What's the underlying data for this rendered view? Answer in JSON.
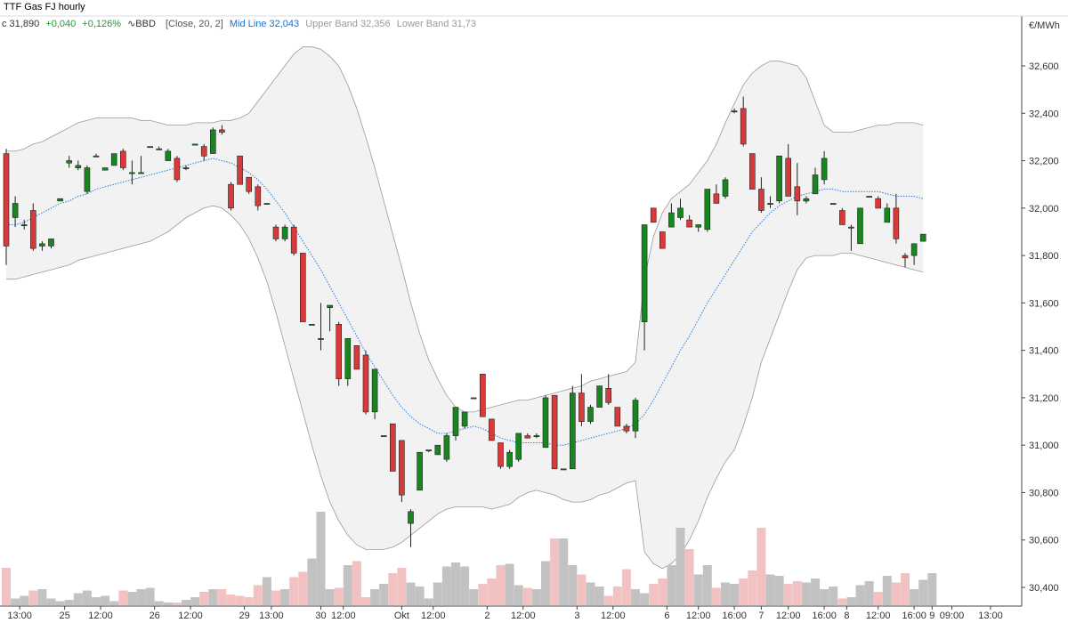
{
  "chart_data": {
    "type": "candlestick",
    "title": "TTF Gas FJ hourly",
    "unit": "€/MWh",
    "legend": {
      "last": "c 31,890",
      "change": "+0,040",
      "change_pct": "+0,126%",
      "indicator": "BBD",
      "indicator_params": "[Close, 20, 2]",
      "mid_line": "Mid Line 32,043",
      "upper_band": "Upper Band 32,356",
      "lower_band": "Lower Band 31,73"
    },
    "ylim": [
      30.3,
      32.8
    ],
    "y_ticks": [
      "32,600",
      "32,400",
      "32,200",
      "32,000",
      "31,800",
      "31,600",
      "31,400",
      "31,200",
      "31,000",
      "30,800",
      "30,600",
      "30,400"
    ],
    "y_tick_values": [
      32.6,
      32.4,
      32.2,
      32.0,
      31.8,
      31.6,
      31.4,
      31.2,
      31.0,
      30.8,
      30.6,
      30.4
    ],
    "x_ticks": [
      {
        "label": "13:00",
        "i": 1.5
      },
      {
        "label": "25",
        "i": 6.5
      },
      {
        "label": "12:00",
        "i": 10.5
      },
      {
        "label": "26",
        "i": 16.5
      },
      {
        "label": "12:00",
        "i": 20.5
      },
      {
        "label": "29",
        "i": 26.5
      },
      {
        "label": "13:00",
        "i": 29.5
      },
      {
        "label": "30",
        "i": 35
      },
      {
        "label": "12:00",
        "i": 37.5
      },
      {
        "label": "Okt",
        "i": 44
      },
      {
        "label": "12:00",
        "i": 47.5
      },
      {
        "label": "2",
        "i": 53.5
      },
      {
        "label": "12:00",
        "i": 57.5
      },
      {
        "label": "3",
        "i": 63.5
      },
      {
        "label": "12:00",
        "i": 67.5
      },
      {
        "label": "6",
        "i": 73.5
      },
      {
        "label": "12:00",
        "i": 77
      },
      {
        "label": "16:00",
        "i": 81
      },
      {
        "label": "7",
        "i": 84
      },
      {
        "label": "12:00",
        "i": 87
      },
      {
        "label": "16:00",
        "i": 91
      },
      {
        "label": "8",
        "i": 93.5
      },
      {
        "label": "12:00",
        "i": 97
      },
      {
        "label": "16:00",
        "i": 101
      },
      {
        "label": "9",
        "i": 103
      },
      {
        "label": "09:00",
        "i": 105.2
      },
      {
        "label": "13:00",
        "i": 109.5
      }
    ],
    "candles": [
      [
        32.23,
        32.25,
        31.76,
        31.84
      ],
      [
        31.96,
        32.05,
        31.92,
        32.02
      ],
      [
        31.93,
        31.95,
        31.91,
        31.93
      ],
      [
        31.99,
        32.02,
        31.82,
        31.83
      ],
      [
        31.84,
        31.86,
        31.82,
        31.85
      ],
      [
        31.84,
        31.87,
        31.83,
        31.87
      ],
      [
        32.03,
        32.04,
        32.03,
        32.04
      ],
      [
        32.19,
        32.22,
        32.17,
        32.2
      ],
      [
        32.17,
        32.2,
        32.16,
        32.18
      ],
      [
        32.07,
        32.18,
        32.06,
        32.17
      ],
      [
        32.22,
        32.23,
        32.22,
        32.22
      ],
      [
        32.16,
        32.17,
        32.16,
        32.17
      ],
      [
        32.18,
        32.23,
        32.18,
        32.23
      ],
      [
        32.24,
        32.25,
        32.16,
        32.17
      ],
      [
        32.15,
        32.2,
        32.1,
        32.15
      ],
      [
        32.15,
        32.22,
        32.15,
        32.15
      ],
      [
        32.26,
        32.26,
        32.26,
        32.26
      ],
      [
        32.25,
        32.26,
        32.25,
        32.25
      ],
      [
        32.2,
        32.25,
        32.2,
        32.24
      ],
      [
        32.21,
        32.22,
        32.11,
        32.12
      ],
      [
        32.17,
        32.18,
        32.16,
        32.17
      ],
      [
        32.27,
        32.27,
        32.27,
        32.27
      ],
      [
        32.26,
        32.27,
        32.2,
        32.22
      ],
      [
        32.23,
        32.34,
        32.23,
        32.33
      ],
      [
        32.33,
        32.35,
        32.31,
        32.32
      ],
      [
        32.1,
        32.11,
        31.99,
        32.0
      ],
      [
        32.22,
        32.22,
        32.1,
        32.1
      ],
      [
        32.13,
        32.13,
        32.06,
        32.07
      ],
      [
        32.09,
        32.1,
        31.99,
        32.01
      ],
      [
        32.02,
        32.02,
        32.02,
        32.02
      ],
      [
        31.92,
        31.93,
        31.86,
        31.87
      ],
      [
        31.87,
        31.93,
        31.86,
        31.92
      ],
      [
        31.92,
        31.93,
        31.8,
        31.81
      ],
      [
        31.81,
        31.81,
        31.52,
        31.52
      ],
      [
        31.51,
        31.51,
        31.51,
        31.51
      ],
      [
        31.45,
        31.6,
        31.4,
        31.45
      ],
      [
        31.58,
        31.58,
        31.48,
        31.59
      ],
      [
        31.51,
        31.52,
        31.25,
        31.28
      ],
      [
        31.28,
        31.45,
        31.25,
        31.45
      ],
      [
        31.42,
        31.42,
        31.32,
        31.32
      ],
      [
        31.38,
        31.4,
        31.13,
        31.14
      ],
      [
        31.14,
        31.32,
        31.11,
        31.32
      ],
      [
        31.04,
        31.04,
        31.04,
        31.04
      ],
      [
        31.09,
        31.09,
        30.89,
        30.89
      ],
      [
        31.02,
        31.02,
        30.76,
        30.79
      ],
      [
        30.67,
        30.73,
        30.57,
        30.72
      ],
      [
        30.81,
        30.97,
        30.81,
        30.97
      ],
      [
        30.98,
        30.98,
        30.97,
        30.98
      ],
      [
        30.96,
        31.0,
        30.96,
        31.0
      ],
      [
        30.94,
        31.05,
        30.93,
        31.04
      ],
      [
        31.04,
        31.16,
        31.02,
        31.16
      ],
      [
        31.08,
        31.14,
        31.07,
        31.14
      ],
      [
        31.2,
        31.2,
        31.2,
        31.2
      ],
      [
        31.3,
        31.3,
        31.12,
        31.12
      ],
      [
        31.11,
        31.11,
        31.02,
        31.02
      ],
      [
        31.01,
        31.01,
        30.9,
        30.91
      ],
      [
        30.91,
        30.98,
        30.9,
        30.97
      ],
      [
        30.94,
        31.05,
        30.93,
        31.05
      ],
      [
        31.04,
        31.05,
        31.03,
        31.03
      ],
      [
        31.04,
        31.05,
        31.03,
        31.04
      ],
      [
        30.99,
        31.21,
        30.99,
        31.2
      ],
      [
        31.21,
        31.21,
        30.9,
        30.9
      ],
      [
        30.9,
        30.9,
        30.9,
        30.9
      ],
      [
        30.9,
        31.25,
        30.9,
        31.22
      ],
      [
        31.22,
        31.3,
        31.08,
        31.1
      ],
      [
        31.1,
        31.17,
        31.09,
        31.16
      ],
      [
        31.16,
        31.25,
        31.16,
        31.25
      ],
      [
        31.24,
        31.3,
        31.17,
        31.18
      ],
      [
        31.16,
        31.16,
        31.08,
        31.08
      ],
      [
        31.08,
        31.09,
        31.05,
        31.06
      ],
      [
        31.06,
        31.2,
        31.03,
        31.19
      ],
      [
        31.52,
        31.93,
        31.4,
        31.93
      ],
      [
        32.0,
        32.0,
        31.94,
        31.94
      ],
      [
        31.9,
        31.9,
        31.83,
        31.83
      ],
      [
        31.92,
        32.02,
        31.92,
        31.98
      ],
      [
        31.96,
        32.04,
        31.95,
        32.0
      ],
      [
        31.95,
        31.97,
        31.92,
        31.92
      ],
      [
        31.92,
        31.93,
        31.9,
        31.93
      ],
      [
        31.91,
        32.08,
        31.9,
        32.08
      ],
      [
        32.06,
        32.1,
        32.02,
        32.02
      ],
      [
        32.05,
        32.13,
        32.04,
        32.12
      ],
      [
        32.41,
        32.42,
        32.4,
        32.41
      ],
      [
        32.42,
        32.47,
        32.26,
        32.27
      ],
      [
        32.23,
        32.23,
        32.08,
        32.08
      ],
      [
        32.08,
        32.13,
        31.98,
        31.99
      ],
      [
        32.02,
        32.05,
        32.0,
        32.02
      ],
      [
        32.03,
        32.22,
        32.02,
        32.22
      ],
      [
        32.21,
        32.27,
        32.05,
        32.05
      ],
      [
        32.09,
        32.19,
        31.97,
        32.03
      ],
      [
        32.03,
        32.05,
        32.02,
        32.04
      ],
      [
        32.06,
        32.17,
        32.06,
        32.14
      ],
      [
        32.12,
        32.24,
        32.1,
        32.21
      ],
      [
        32.02,
        32.02,
        32.02,
        32.02
      ],
      [
        31.99,
        32.0,
        31.93,
        31.93
      ],
      [
        31.92,
        31.93,
        31.82,
        31.92
      ],
      [
        31.85,
        32.0,
        31.85,
        32.0
      ],
      [
        32.05,
        32.05,
        32.05,
        32.05
      ],
      [
        32.04,
        32.05,
        32.0,
        32.0
      ],
      [
        31.94,
        32.02,
        31.94,
        32.0
      ],
      [
        32.0,
        32.06,
        31.85,
        31.87
      ],
      [
        31.8,
        31.81,
        31.75,
        31.79
      ],
      [
        31.8,
        31.85,
        31.76,
        31.85
      ],
      [
        31.86,
        31.89,
        31.86,
        31.89
      ]
    ],
    "mid_line": [
      31.93,
      31.93,
      31.94,
      31.96,
      31.98,
      32.0,
      32.02,
      32.03,
      32.05,
      32.06,
      32.08,
      32.09,
      32.1,
      32.11,
      32.12,
      32.13,
      32.14,
      32.15,
      32.16,
      32.17,
      32.18,
      32.19,
      32.2,
      32.21,
      32.2,
      32.19,
      32.17,
      32.15,
      32.12,
      32.08,
      32.03,
      31.98,
      31.92,
      31.86,
      31.8,
      31.74,
      31.67,
      31.6,
      31.53,
      31.46,
      31.39,
      31.33,
      31.27,
      31.21,
      31.16,
      31.12,
      31.09,
      31.07,
      31.05,
      31.05,
      31.06,
      31.07,
      31.08,
      31.07,
      31.05,
      31.03,
      31.02,
      31.01,
      31.01,
      31.01,
      31.01,
      31.0,
      31.0,
      31.01,
      31.02,
      31.03,
      31.04,
      31.05,
      31.06,
      31.07,
      31.09,
      31.13,
      31.19,
      31.26,
      31.33,
      31.4,
      31.46,
      31.53,
      31.6,
      31.66,
      31.72,
      31.78,
      31.84,
      31.9,
      31.94,
      31.98,
      32.01,
      32.03,
      32.05,
      32.06,
      32.07,
      32.08,
      32.08,
      32.07,
      32.07,
      32.07,
      32.07,
      32.07,
      32.06,
      32.05,
      32.05,
      32.05,
      32.04
    ],
    "upper_band": [
      32.24,
      32.24,
      32.25,
      32.27,
      32.28,
      32.3,
      32.32,
      32.34,
      32.36,
      32.37,
      32.38,
      32.38,
      32.38,
      32.38,
      32.38,
      32.37,
      32.37,
      32.36,
      32.35,
      32.35,
      32.35,
      32.36,
      32.36,
      32.36,
      32.37,
      32.37,
      32.38,
      32.4,
      32.45,
      32.5,
      32.55,
      32.6,
      32.65,
      32.68,
      32.68,
      32.67,
      32.64,
      32.6,
      32.52,
      32.42,
      32.3,
      32.17,
      32.03,
      31.89,
      31.75,
      31.6,
      31.47,
      31.36,
      31.28,
      31.21,
      31.16,
      31.14,
      31.14,
      31.15,
      31.16,
      31.17,
      31.18,
      31.19,
      31.19,
      31.2,
      31.21,
      31.22,
      31.23,
      31.24,
      31.25,
      31.27,
      31.28,
      31.29,
      31.3,
      31.31,
      31.35,
      31.7,
      31.88,
      31.98,
      32.04,
      32.07,
      32.1,
      32.15,
      32.2,
      32.27,
      32.36,
      32.44,
      32.52,
      32.57,
      32.6,
      32.62,
      32.62,
      32.61,
      32.6,
      32.55,
      32.45,
      32.35,
      32.32,
      32.32,
      32.32,
      32.33,
      32.34,
      32.35,
      32.35,
      32.36,
      32.36,
      32.36,
      32.35
    ],
    "lower_band": [
      31.7,
      31.7,
      31.71,
      31.72,
      31.73,
      31.74,
      31.75,
      31.76,
      31.78,
      31.79,
      31.8,
      31.81,
      31.82,
      31.83,
      31.84,
      31.85,
      31.86,
      31.88,
      31.9,
      31.93,
      31.96,
      31.98,
      32.0,
      32.01,
      32.0,
      31.97,
      31.93,
      31.87,
      31.79,
      31.69,
      31.56,
      31.42,
      31.28,
      31.14,
      31.0,
      30.87,
      30.76,
      30.68,
      30.62,
      30.58,
      30.56,
      30.56,
      30.56,
      30.57,
      30.59,
      30.62,
      30.65,
      30.68,
      30.71,
      30.73,
      30.74,
      30.74,
      30.74,
      30.74,
      30.73,
      30.74,
      30.75,
      30.78,
      30.8,
      30.81,
      30.8,
      30.79,
      30.77,
      30.76,
      30.76,
      30.77,
      30.79,
      30.8,
      30.82,
      30.84,
      30.85,
      30.55,
      30.5,
      30.48,
      30.5,
      30.54,
      30.6,
      30.68,
      30.78,
      30.86,
      30.93,
      30.98,
      31.08,
      31.2,
      31.35,
      31.45,
      31.55,
      31.65,
      31.74,
      31.79,
      31.8,
      31.8,
      31.8,
      31.81,
      31.81,
      31.8,
      31.79,
      31.78,
      31.77,
      31.76,
      31.75,
      31.74,
      31.73
    ],
    "volumes": [
      0.28,
      0.05,
      0.07,
      0.11,
      0.12,
      0.05,
      0.03,
      0.04,
      0.09,
      0.11,
      0.06,
      0.07,
      0.03,
      0.11,
      0.1,
      0.12,
      0.13,
      0.03,
      0.02,
      0.02,
      0.04,
      0.06,
      0.1,
      0.12,
      0.12,
      0.08,
      0.07,
      0.06,
      0.15,
      0.21,
      0.11,
      0.12,
      0.21,
      0.25,
      0.35,
      0.7,
      0.12,
      0.13,
      0.3,
      0.33,
      0.06,
      0.12,
      0.16,
      0.24,
      0.28,
      0.17,
      0.14,
      0.05,
      0.17,
      0.29,
      0.32,
      0.29,
      0.12,
      0.16,
      0.2,
      0.3,
      0.31,
      0.15,
      0.13,
      0.12,
      0.33,
      0.5,
      0.5,
      0.3,
      0.23,
      0.17,
      0.14,
      0.07,
      0.14,
      0.27,
      0.12,
      0.09,
      0.16,
      0.2,
      0.3,
      0.58,
      0.42,
      0.23,
      0.3,
      0.13,
      0.17,
      0.16,
      0.2,
      0.26,
      0.58,
      0.23,
      0.22,
      0.16,
      0.18,
      0.17,
      0.2,
      0.12,
      0.14,
      0.05,
      0.06,
      0.15,
      0.18,
      0.1,
      0.22,
      0.17,
      0.24,
      0.12,
      0.19,
      0.24
    ],
    "legend_position": "top-left",
    "grid": false
  }
}
